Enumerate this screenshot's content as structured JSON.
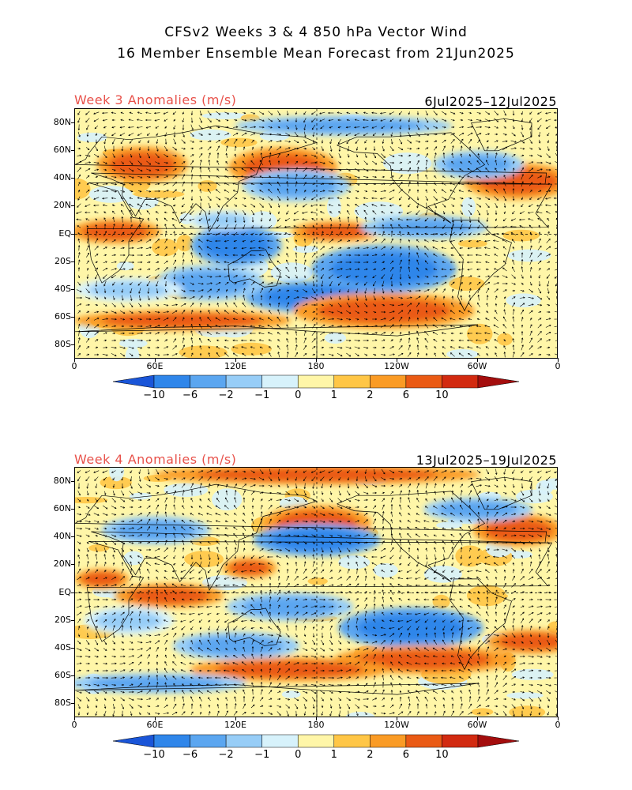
{
  "title": {
    "line1": "CFSv2 Weeks 3 & 4 850 hPa Vector Wind",
    "line2": "16 Member Ensemble Mean Forecast from 21Jun2025"
  },
  "axes": {
    "lat_labels": [
      "80N",
      "60N",
      "40N",
      "20N",
      "EQ",
      "20S",
      "40S",
      "60S",
      "80S"
    ],
    "lat_values": [
      80,
      60,
      40,
      20,
      0,
      -20,
      -40,
      -60,
      -80
    ],
    "lon_labels": [
      "0",
      "60E",
      "120E",
      "180",
      "120W",
      "60W",
      "0"
    ],
    "lon_values": [
      0,
      60,
      120,
      180,
      240,
      300,
      360
    ],
    "lat_range": [
      -90,
      90
    ],
    "lon_range": [
      0,
      360
    ]
  },
  "colorbar": {
    "labels": [
      "-10",
      "-6",
      "-2",
      "-1",
      "0",
      "1",
      "2",
      "6",
      "10"
    ],
    "colors": [
      "#1a55d8",
      "#2f86ea",
      "#5ba6f0",
      "#97cdf7",
      "#d7f2fb",
      "#fff6a8",
      "#ffc646",
      "#fa9b25",
      "#ea5a14",
      "#d22a10",
      "#a40d0d"
    ]
  },
  "panels": [
    {
      "label": "Week 3 Anomalies (m/s)",
      "dates": "6Jul2025–12Jul2025",
      "blobs": [
        {
          "lon": 50,
          "lat": 50,
          "rx": 25,
          "ry": 9,
          "lvl": 8
        },
        {
          "lon": 155,
          "lat": 48,
          "rx": 30,
          "ry": 10,
          "lvl": 8
        },
        {
          "lon": 165,
          "lat": 35,
          "rx": 30,
          "ry": 8,
          "lvl": 2
        },
        {
          "lon": 330,
          "lat": 38,
          "rx": 30,
          "ry": 9,
          "lvl": 8
        },
        {
          "lon": 300,
          "lat": 50,
          "rx": 25,
          "ry": 7,
          "lvl": 2
        },
        {
          "lon": 30,
          "lat": 2,
          "rx": 25,
          "ry": 6,
          "lvl": 8
        },
        {
          "lon": 120,
          "lat": -8,
          "rx": 25,
          "ry": 10,
          "lvl": 1
        },
        {
          "lon": 230,
          "lat": -25,
          "rx": 40,
          "ry": 12,
          "lvl": 1
        },
        {
          "lon": 180,
          "lat": -45,
          "rx": 40,
          "ry": 8,
          "lvl": 1
        },
        {
          "lon": 100,
          "lat": -35,
          "rx": 30,
          "ry": 9,
          "lvl": 2
        },
        {
          "lon": 230,
          "lat": -55,
          "rx": 50,
          "ry": 9,
          "lvl": 8
        },
        {
          "lon": 80,
          "lat": -62,
          "rx": 60,
          "ry": 5,
          "lvl": 8
        },
        {
          "lon": 40,
          "lat": -40,
          "rx": 30,
          "ry": 6,
          "lvl": 3
        },
        {
          "lon": 110,
          "lat": 10,
          "rx": 20,
          "ry": 5,
          "lvl": 3
        },
        {
          "lon": 195,
          "lat": 2,
          "rx": 25,
          "ry": 5,
          "lvl": 8
        },
        {
          "lon": 260,
          "lat": 5,
          "rx": 35,
          "ry": 6,
          "lvl": 2
        },
        {
          "lon": 200,
          "lat": 78,
          "rx": 60,
          "ry": 5,
          "lvl": 2
        }
      ]
    },
    {
      "label": "Week 4 Anomalies (m/s)",
      "dates": "13Jul2025–19Jul2025",
      "blobs": [
        {
          "lon": 180,
          "lat": 50,
          "rx": 30,
          "ry": 9,
          "lvl": 8
        },
        {
          "lon": 180,
          "lat": 38,
          "rx": 35,
          "ry": 8,
          "lvl": 1
        },
        {
          "lon": 60,
          "lat": 45,
          "rx": 30,
          "ry": 7,
          "lvl": 2
        },
        {
          "lon": 330,
          "lat": 45,
          "rx": 25,
          "ry": 8,
          "lvl": 8
        },
        {
          "lon": 130,
          "lat": 18,
          "rx": 15,
          "ry": 5,
          "lvl": 8
        },
        {
          "lon": 70,
          "lat": -2,
          "rx": 30,
          "ry": 6,
          "lvl": 8
        },
        {
          "lon": 160,
          "lat": -10,
          "rx": 35,
          "ry": 7,
          "lvl": 2
        },
        {
          "lon": 250,
          "lat": -25,
          "rx": 40,
          "ry": 10,
          "lvl": 1
        },
        {
          "lon": 120,
          "lat": -38,
          "rx": 35,
          "ry": 7,
          "lvl": 2
        },
        {
          "lon": 260,
          "lat": -48,
          "rx": 50,
          "ry": 7,
          "lvl": 8
        },
        {
          "lon": 160,
          "lat": -55,
          "rx": 55,
          "ry": 6,
          "lvl": 8
        },
        {
          "lon": 340,
          "lat": -35,
          "rx": 25,
          "ry": 6,
          "lvl": 8
        },
        {
          "lon": 40,
          "lat": -20,
          "rx": 25,
          "ry": 7,
          "lvl": 3
        },
        {
          "lon": 20,
          "lat": 10,
          "rx": 15,
          "ry": 5,
          "lvl": 8
        },
        {
          "lon": 300,
          "lat": 60,
          "rx": 30,
          "ry": 6,
          "lvl": 2
        },
        {
          "lon": 180,
          "lat": 85,
          "rx": 90,
          "ry": 5,
          "lvl": 8
        },
        {
          "lon": 60,
          "lat": -65,
          "rx": 50,
          "ry": 5,
          "lvl": 2
        }
      ]
    }
  ]
}
